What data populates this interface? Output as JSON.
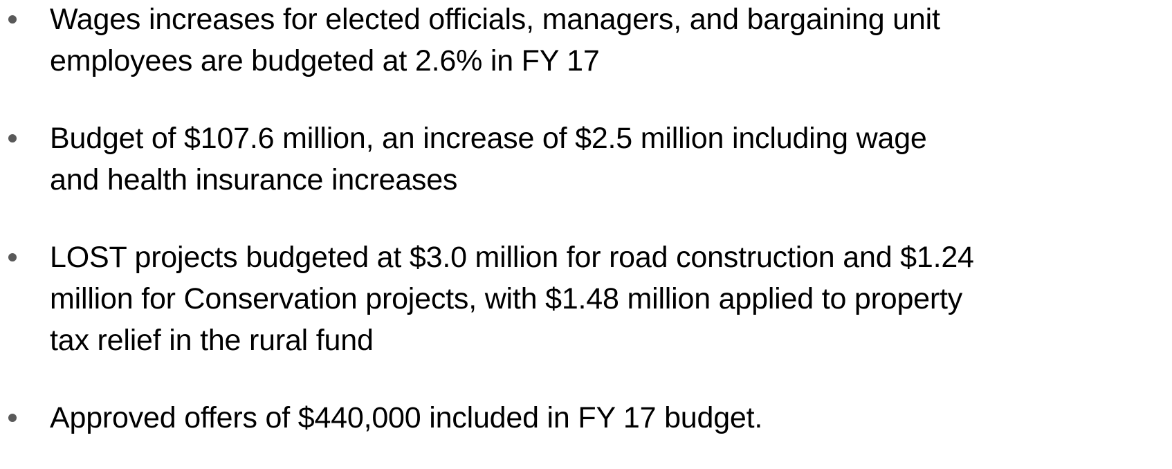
{
  "bullets": [
    {
      "lines": [
        "Wages increases for elected officials, managers, and bargaining unit",
        "employees are budgeted at 2.6% in FY 17"
      ]
    },
    {
      "lines": [
        "Budget of $107.6 million, an increase of $2.5 million including wage",
        "and health insurance increases"
      ]
    },
    {
      "lines": [
        "LOST projects budgeted at $3.0 million for road construction and $1.24",
        "million for Conservation projects, with $1.48 million applied to property",
        "tax relief in the rural fund"
      ]
    },
    {
      "lines": [
        "Approved offers of $440,000 included in FY 17 budget."
      ]
    }
  ]
}
